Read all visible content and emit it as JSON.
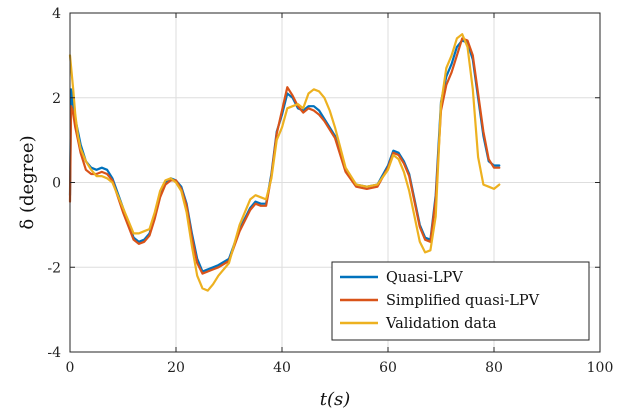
{
  "chart_data": {
    "type": "line",
    "title": "",
    "xlabel": "t(s)",
    "ylabel": "δ (degree)",
    "xlim": [
      0,
      100
    ],
    "ylim": [
      -4,
      4
    ],
    "xticks": [
      0,
      20,
      40,
      60,
      80,
      100
    ],
    "yticks": [
      -4,
      -2,
      0,
      2,
      4
    ],
    "xtick_labels": [
      "0",
      "20",
      "40",
      "60",
      "80",
      "100"
    ],
    "ytick_labels": [
      "-4",
      "-2",
      "0",
      "2",
      "4"
    ],
    "grid": true,
    "legend_position": "bottom-right",
    "series": [
      {
        "name": "Quasi-LPV",
        "color": "#0072BD",
        "x": [
          0,
          0.2,
          0.5,
          1,
          1.5,
          2,
          3,
          4,
          5,
          6,
          7,
          8,
          10,
          12,
          13,
          14,
          15,
          16,
          17,
          18,
          19,
          20,
          21,
          22,
          23,
          24,
          25,
          26,
          27,
          28,
          30,
          32,
          34,
          35,
          36,
          37,
          38,
          39,
          40,
          41,
          42,
          43,
          44,
          45,
          46,
          47,
          48,
          50,
          52,
          54,
          56,
          58,
          60,
          61,
          62,
          63,
          64,
          65,
          66,
          67,
          68,
          69,
          70,
          71,
          72,
          73,
          74,
          75,
          76,
          77,
          78,
          79,
          80,
          81
        ],
        "y": [
          -0.3,
          2.2,
          1.9,
          1.5,
          1.2,
          0.9,
          0.5,
          0.35,
          0.3,
          0.35,
          0.3,
          0.1,
          -0.6,
          -1.3,
          -1.4,
          -1.35,
          -1.2,
          -0.8,
          -0.3,
          0.0,
          0.1,
          0.05,
          -0.1,
          -0.5,
          -1.2,
          -1.8,
          -2.1,
          -2.05,
          -2.0,
          -1.95,
          -1.8,
          -1.1,
          -0.6,
          -0.45,
          -0.5,
          -0.5,
          0.2,
          1.2,
          1.6,
          2.1,
          2.0,
          1.75,
          1.7,
          1.8,
          1.8,
          1.7,
          1.5,
          1.1,
          0.3,
          -0.05,
          -0.1,
          -0.05,
          0.4,
          0.75,
          0.7,
          0.5,
          0.2,
          -0.4,
          -1.0,
          -1.3,
          -1.35,
          -0.3,
          1.9,
          2.5,
          2.8,
          3.2,
          3.35,
          3.3,
          2.9,
          2.0,
          1.1,
          0.5,
          0.4,
          0.4
        ]
      },
      {
        "name": "Simplified quasi-LPV",
        "color": "#D95319",
        "x": [
          0,
          0.2,
          0.5,
          1,
          1.5,
          2,
          3,
          4,
          5,
          6,
          7,
          8,
          10,
          12,
          13,
          14,
          15,
          16,
          17,
          18,
          19,
          20,
          21,
          22,
          23,
          24,
          25,
          26,
          27,
          28,
          30,
          32,
          34,
          35,
          36,
          37,
          38,
          39,
          40,
          41,
          42,
          43,
          44,
          45,
          46,
          47,
          48,
          50,
          52,
          54,
          56,
          58,
          60,
          61,
          62,
          63,
          64,
          65,
          66,
          67,
          68,
          69,
          70,
          71,
          72,
          73,
          74,
          75,
          76,
          77,
          78,
          79,
          80,
          81
        ],
        "y": [
          -0.45,
          1.8,
          1.7,
          1.3,
          1.0,
          0.7,
          0.3,
          0.2,
          0.2,
          0.25,
          0.2,
          0.05,
          -0.7,
          -1.35,
          -1.45,
          -1.4,
          -1.25,
          -0.85,
          -0.35,
          -0.05,
          0.05,
          0.05,
          -0.15,
          -0.55,
          -1.3,
          -1.9,
          -2.15,
          -2.1,
          -2.05,
          -2.0,
          -1.85,
          -1.15,
          -0.65,
          -0.5,
          -0.55,
          -0.55,
          0.15,
          1.15,
          1.7,
          2.25,
          2.05,
          1.8,
          1.65,
          1.75,
          1.7,
          1.6,
          1.45,
          1.05,
          0.25,
          -0.1,
          -0.15,
          -0.1,
          0.35,
          0.7,
          0.65,
          0.45,
          0.15,
          -0.45,
          -1.05,
          -1.35,
          -1.4,
          -0.4,
          1.7,
          2.3,
          2.6,
          3.0,
          3.4,
          3.35,
          3.0,
          2.1,
          1.2,
          0.55,
          0.35,
          0.35
        ]
      },
      {
        "name": "Validation data",
        "color": "#EDB120",
        "x": [
          0,
          0.3,
          0.6,
          1,
          1.5,
          2,
          3,
          4,
          5,
          6,
          7,
          8,
          10,
          12,
          13,
          14,
          15,
          16,
          17,
          18,
          19,
          20,
          21,
          22,
          23,
          24,
          25,
          26,
          27,
          28,
          30,
          32,
          34,
          35,
          36,
          37,
          38,
          39,
          40,
          41,
          42,
          43,
          44,
          45,
          46,
          47,
          48,
          49,
          50,
          52,
          54,
          56,
          58,
          60,
          61,
          62,
          63,
          64,
          65,
          66,
          67,
          68,
          69,
          70,
          71,
          72,
          73,
          74,
          75,
          76,
          77,
          78,
          79,
          80,
          81
        ],
        "y": [
          3.0,
          2.6,
          2.2,
          1.6,
          1.1,
          0.8,
          0.5,
          0.3,
          0.15,
          0.15,
          0.1,
          0.0,
          -0.6,
          -1.2,
          -1.2,
          -1.15,
          -1.1,
          -0.7,
          -0.2,
          0.05,
          0.1,
          0.0,
          -0.2,
          -0.7,
          -1.5,
          -2.2,
          -2.5,
          -2.55,
          -2.4,
          -2.2,
          -1.9,
          -1.0,
          -0.4,
          -0.3,
          -0.35,
          -0.4,
          0.1,
          1.0,
          1.3,
          1.75,
          1.8,
          1.85,
          1.75,
          2.1,
          2.2,
          2.15,
          2.0,
          1.7,
          1.3,
          0.35,
          -0.05,
          -0.1,
          -0.05,
          0.3,
          0.65,
          0.55,
          0.25,
          -0.2,
          -0.8,
          -1.4,
          -1.65,
          -1.6,
          -0.8,
          1.85,
          2.7,
          3.0,
          3.4,
          3.5,
          3.2,
          2.2,
          0.6,
          -0.05,
          -0.1,
          -0.15,
          -0.05
        ]
      }
    ]
  }
}
